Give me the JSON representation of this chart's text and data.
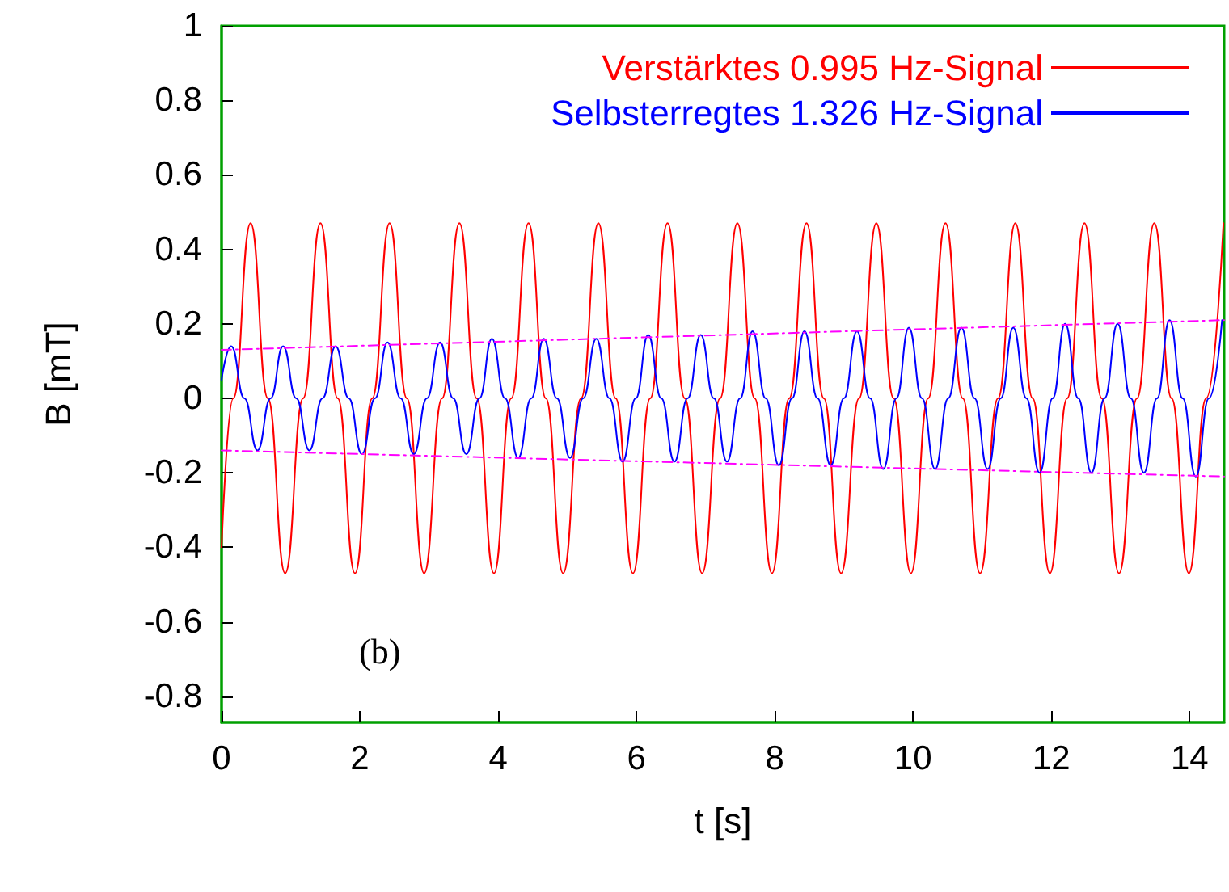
{
  "chart_data": {
    "type": "line",
    "xlabel": "t [s]",
    "ylabel": "B [mT]",
    "annotations": [
      "(b)"
    ],
    "xlim": [
      0,
      14.5
    ],
    "ylim": [
      -0.87,
      1
    ],
    "xticks": [
      0,
      2,
      4,
      6,
      8,
      10,
      12,
      14
    ],
    "yticks": [
      -0.8,
      -0.6,
      -0.4,
      -0.2,
      0,
      0.2,
      0.4,
      0.6,
      0.8,
      1
    ],
    "grid": false,
    "legend": "top right",
    "marker": "none",
    "line_style": "solid",
    "series": [
      {
        "name": "Verstärktes 0.995 Hz-Signal",
        "color": "#ff0000",
        "x": [
          0,
          0.17,
          0.42,
          0.67,
          0.92,
          1.18,
          1.43,
          1.68,
          1.93,
          2.18,
          2.43,
          2.68,
          2.93,
          3.19,
          3.44,
          3.69,
          3.94,
          4.19,
          4.44,
          4.69,
          4.94,
          5.2,
          5.45,
          5.7,
          5.95,
          6.2,
          6.45,
          6.7,
          6.95,
          7.21,
          7.46,
          7.71,
          7.96,
          8.21,
          8.46,
          8.71,
          8.96,
          9.22,
          9.47,
          9.72,
          9.97,
          10.22,
          10.47,
          10.72,
          10.97,
          11.23,
          11.48,
          11.73,
          11.98,
          12.23,
          12.48,
          12.73,
          12.98,
          13.24,
          13.49,
          13.74,
          13.99,
          14.24,
          14.49
        ],
        "values": [
          -0.4,
          0,
          0.47,
          0,
          -0.47,
          0,
          0.47,
          0,
          -0.47,
          0,
          0.47,
          0,
          -0.47,
          0,
          0.47,
          0,
          -0.47,
          0,
          0.47,
          0,
          -0.47,
          0,
          0.47,
          0,
          -0.47,
          0,
          0.47,
          0,
          -0.47,
          0,
          0.47,
          0,
          -0.47,
          0,
          0.47,
          0,
          -0.47,
          0,
          0.47,
          0,
          -0.47,
          0,
          0.47,
          0,
          -0.47,
          0,
          0.47,
          0,
          -0.47,
          0,
          0.47,
          0,
          -0.47,
          0,
          0.47,
          0,
          -0.47,
          0,
          0.47
        ]
      },
      {
        "name": "Selbsterregtes 1.326 Hz-Signal",
        "color": "#0000ff",
        "x": [
          0,
          0.14,
          0.33,
          0.52,
          0.71,
          0.89,
          1.08,
          1.27,
          1.46,
          1.65,
          1.84,
          2.03,
          2.22,
          2.4,
          2.59,
          2.78,
          2.97,
          3.16,
          3.35,
          3.54,
          3.73,
          3.91,
          4.1,
          4.29,
          4.48,
          4.66,
          4.85,
          5.04,
          5.23,
          5.42,
          5.61,
          5.8,
          5.99,
          6.17,
          6.36,
          6.55,
          6.74,
          6.93,
          7.12,
          7.31,
          7.5,
          7.68,
          7.87,
          8.06,
          8.25,
          8.43,
          8.62,
          8.81,
          9.0,
          9.19,
          9.38,
          9.57,
          9.76,
          9.94,
          10.13,
          10.32,
          10.51,
          10.7,
          10.89,
          11.08,
          11.27,
          11.45,
          11.64,
          11.83,
          12.02,
          12.2,
          12.39,
          12.58,
          12.77,
          12.96,
          13.15,
          13.34,
          13.53,
          13.71,
          13.9,
          14.09,
          14.28,
          14.47
        ],
        "values": [
          0.05,
          0.14,
          0,
          -0.14,
          0,
          0.14,
          0,
          -0.14,
          0,
          0.14,
          0,
          -0.15,
          0,
          0.15,
          0,
          -0.15,
          0,
          0.15,
          0,
          -0.15,
          0,
          0.16,
          0,
          -0.16,
          0,
          0.16,
          0,
          -0.16,
          0,
          0.16,
          0,
          -0.17,
          0,
          0.17,
          0,
          -0.17,
          0,
          0.17,
          0,
          -0.17,
          0,
          0.18,
          0,
          -0.18,
          0,
          0.18,
          0,
          -0.18,
          0,
          0.18,
          0,
          -0.19,
          0,
          0.19,
          0,
          -0.19,
          0,
          0.19,
          0,
          -0.19,
          0,
          0.19,
          0,
          -0.2,
          0,
          0.2,
          0,
          -0.2,
          0,
          0.2,
          0,
          -0.2,
          0,
          0.21,
          0,
          -0.21,
          0,
          0.21
        ]
      },
      {
        "color": "#ff00ff",
        "line_style": "dashed",
        "x": [
          0,
          14.5
        ],
        "values": [
          0.13,
          0.21
        ]
      },
      {
        "color": "#ff00ff",
        "line_style": "dashed",
        "x": [
          0,
          14.5
        ],
        "values": [
          -0.14,
          -0.21
        ]
      }
    ]
  }
}
